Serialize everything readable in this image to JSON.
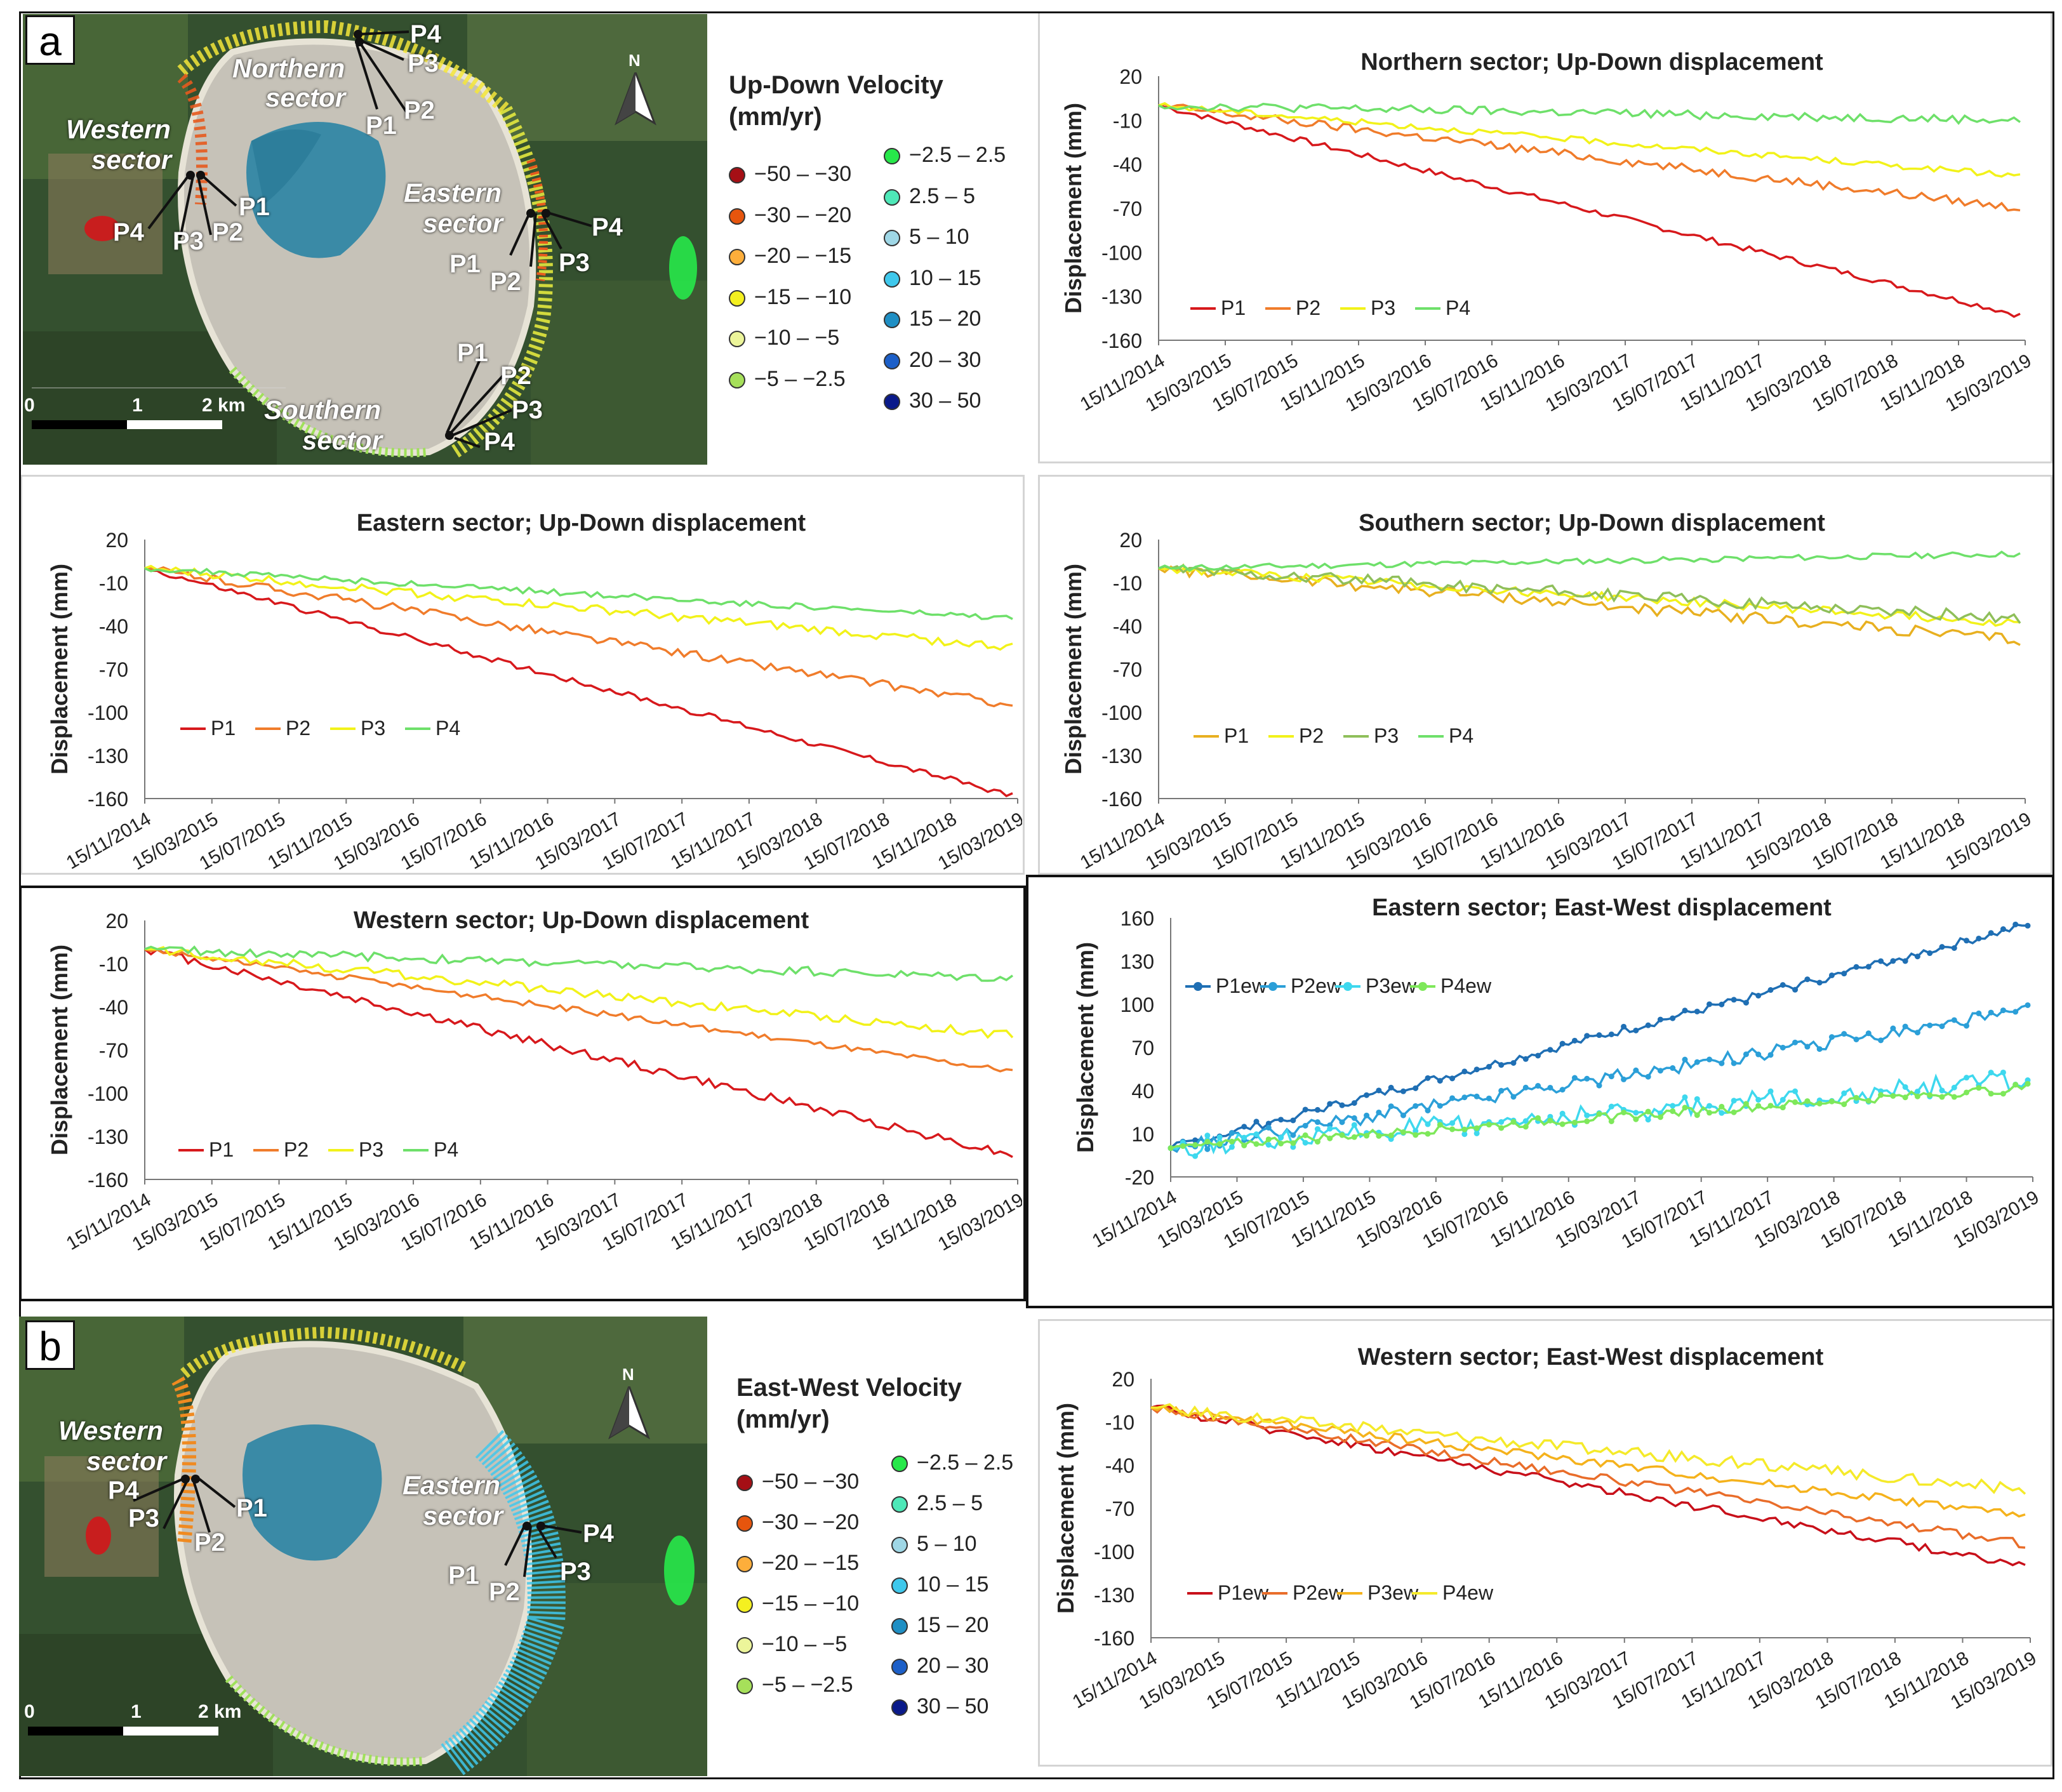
{
  "panel_a_letter": "a",
  "panel_b_letter": "b",
  "map_a": {
    "labels": {
      "northern": [
        "Northern",
        "sector"
      ],
      "western": [
        "Western",
        "sector"
      ],
      "eastern": [
        "Eastern",
        "sector"
      ],
      "southern": [
        "Southern",
        "sector"
      ]
    },
    "north_arrow": "N",
    "scale": {
      "zero": "0",
      "one": "1",
      "two": "2 km"
    },
    "points": {
      "p1": "P1",
      "p2": "P2",
      "p3": "P3",
      "p4": "P4"
    }
  },
  "map_b": {
    "labels": {
      "western": [
        "Western",
        "sector"
      ],
      "eastern": [
        "Eastern",
        "sector"
      ]
    },
    "north_arrow": "N",
    "scale": {
      "zero": "0",
      "one": "1",
      "two": "2 km"
    },
    "points": {
      "p1": "P1",
      "p2": "P2",
      "p3": "P3",
      "p4": "P4"
    }
  },
  "legend_a": {
    "title_line1": "Up-Down Velocity",
    "title_line2": "(mm/yr)",
    "classes": [
      {
        "label": "−50 – −30",
        "color": "#a50f15"
      },
      {
        "label": "−30 – −20",
        "color": "#e6550d"
      },
      {
        "label": "−20 – −15",
        "color": "#fdae3b"
      },
      {
        "label": "−15 – −10",
        "color": "#f4f020"
      },
      {
        "label": "−10 – −5",
        "color": "#ecf59a"
      },
      {
        "label": "−5 – −2.5",
        "color": "#a6e05a"
      },
      {
        "label": "−2.5 – 2.5",
        "color": "#27e84a"
      },
      {
        "label": "2.5 – 5",
        "color": "#4ee8b8"
      },
      {
        "label": "5 – 10",
        "color": "#9fd7e6"
      },
      {
        "label": "10 – 15",
        "color": "#3fc8ec"
      },
      {
        "label": "15 – 20",
        "color": "#1f8fc4"
      },
      {
        "label": "20 – 30",
        "color": "#1c5fc8"
      },
      {
        "label": "30 – 50",
        "color": "#0a1a8a"
      }
    ]
  },
  "legend_b": {
    "title_line1": "East-West Velocity",
    "title_line2": "(mm/yr)",
    "classes": [
      {
        "label": "−50 – −30",
        "color": "#a50f15"
      },
      {
        "label": "−30 – −20",
        "color": "#e6550d"
      },
      {
        "label": "−20 – −15",
        "color": "#fdae3b"
      },
      {
        "label": "−15 – −10",
        "color": "#f4f020"
      },
      {
        "label": "−10 – −5",
        "color": "#ecf59a"
      },
      {
        "label": "−5 – −2.5",
        "color": "#a6e05a"
      },
      {
        "label": "−2.5 – 2.5",
        "color": "#27e84a"
      },
      {
        "label": "2.5 – 5",
        "color": "#4ee8b8"
      },
      {
        "label": "5 – 10",
        "color": "#9fd7e6"
      },
      {
        "label": "10 – 15",
        "color": "#3fc8ec"
      },
      {
        "label": "15 – 20",
        "color": "#1f8fc4"
      },
      {
        "label": "20 – 30",
        "color": "#1c5fc8"
      },
      {
        "label": "30 – 50",
        "color": "#0a1a8a"
      }
    ]
  },
  "chart_data": [
    {
      "id": "north_ud",
      "type": "line",
      "title": "Northern sector; Up-Down displacement",
      "ylabel": "Displacement (mm)",
      "xlabel": "",
      "ylim": [
        -160,
        20
      ],
      "yticks": [
        20,
        -10,
        -40,
        -70,
        -100,
        -130,
        -160
      ],
      "xticks": [
        "15/11/2014",
        "15/03/2015",
        "15/07/2015",
        "15/11/2015",
        "15/03/2016",
        "15/07/2016",
        "15/11/2016",
        "15/03/2017",
        "15/07/2017",
        "15/11/2017",
        "15/03/2018",
        "15/07/2018",
        "15/11/2018",
        "15/03/2019"
      ],
      "legend": "bottom-left",
      "series": [
        {
          "name": "P1",
          "color": "#d7191c",
          "end": -143,
          "noise": 2
        },
        {
          "name": "P2",
          "color": "#f07c2b",
          "end": -70,
          "noise": 3
        },
        {
          "name": "P3",
          "color": "#f2f21a",
          "end": -48,
          "noise": 2
        },
        {
          "name": "P4",
          "color": "#6ee06a",
          "end": -10,
          "noise": 3
        }
      ]
    },
    {
      "id": "east_ud",
      "type": "line",
      "title": "Eastern sector; Up-Down displacement",
      "ylabel": "Displacement (mm)",
      "xlabel": "",
      "ylim": [
        -160,
        20
      ],
      "yticks": [
        20,
        -10,
        -40,
        -70,
        -100,
        -130,
        -160
      ],
      "xticks": [
        "15/11/2014",
        "15/03/2015",
        "15/07/2015",
        "15/11/2015",
        "15/03/2016",
        "15/07/2016",
        "15/11/2016",
        "15/03/2017",
        "15/07/2017",
        "15/11/2017",
        "15/03/2018",
        "15/07/2018",
        "15/11/2018",
        "15/03/2019"
      ],
      "legend": "bottom-left",
      "series": [
        {
          "name": "P1",
          "color": "#d7191c",
          "end": -158,
          "noise": 2
        },
        {
          "name": "P2",
          "color": "#f07c2b",
          "end": -95,
          "noise": 3
        },
        {
          "name": "P3",
          "color": "#f2f21a",
          "end": -55,
          "noise": 3
        },
        {
          "name": "P4",
          "color": "#6ee06a",
          "end": -35,
          "noise": 2
        }
      ]
    },
    {
      "id": "south_ud",
      "type": "line",
      "title": "Southern sector; Up-Down displacement",
      "ylabel": "Displacement (mm)",
      "xlabel": "",
      "ylim": [
        -160,
        20
      ],
      "yticks": [
        20,
        -10,
        -40,
        -70,
        -100,
        -130,
        -160
      ],
      "xticks": [
        "15/11/2014",
        "15/03/2015",
        "15/07/2015",
        "15/11/2015",
        "15/03/2016",
        "15/07/2016",
        "15/11/2016",
        "15/03/2017",
        "15/07/2017",
        "15/11/2017",
        "15/03/2018",
        "15/07/2018",
        "15/11/2018",
        "15/03/2019"
      ],
      "legend": "bottom-left",
      "series": [
        {
          "name": "P1",
          "color": "#e8b020",
          "end": -50,
          "noise": 4
        },
        {
          "name": "P2",
          "color": "#f2f21a",
          "end": -38,
          "noise": 3
        },
        {
          "name": "P3",
          "color": "#8fbf5a",
          "end": -35,
          "noise": 4
        },
        {
          "name": "P4",
          "color": "#6ee06a",
          "end": 10,
          "noise": 2
        }
      ]
    },
    {
      "id": "west_ud",
      "type": "line",
      "title": "Western sector; Up-Down displacement",
      "ylabel": "Displacement (mm)",
      "xlabel": "",
      "ylim": [
        -160,
        20
      ],
      "yticks": [
        20,
        -10,
        -40,
        -70,
        -100,
        -130,
        -160
      ],
      "xticks": [
        "15/11/2014",
        "15/03/2015",
        "15/07/2015",
        "15/11/2015",
        "15/03/2016",
        "15/07/2016",
        "15/11/2016",
        "15/03/2017",
        "15/07/2017",
        "15/11/2017",
        "15/03/2018",
        "15/07/2018",
        "15/11/2018",
        "15/03/2019"
      ],
      "legend": "bottom-left",
      "series": [
        {
          "name": "P1",
          "color": "#d7191c",
          "end": -143,
          "noise": 3
        },
        {
          "name": "P2",
          "color": "#f07c2b",
          "end": -85,
          "noise": 2
        },
        {
          "name": "P3",
          "color": "#f2f21a",
          "end": -60,
          "noise": 3
        },
        {
          "name": "P4",
          "color": "#6ee06a",
          "end": -20,
          "noise": 3
        }
      ]
    },
    {
      "id": "east_ew",
      "type": "line",
      "title": "Eastern sector; East-West displacement",
      "ylabel": "Displacement (mm)",
      "xlabel": "",
      "ylim": [
        -20,
        160
      ],
      "yticks": [
        160,
        130,
        100,
        70,
        40,
        10,
        -20
      ],
      "xticks": [
        "15/11/2014",
        "15/03/2015",
        "15/07/2015",
        "15/11/2015",
        "15/03/2016",
        "15/07/2016",
        "15/11/2016",
        "15/03/2017",
        "15/07/2017",
        "15/11/2017",
        "15/03/2018",
        "15/07/2018",
        "15/11/2018",
        "15/03/2019"
      ],
      "legend": "top-left",
      "markers": true,
      "series": [
        {
          "name": "P1ew",
          "color": "#1f6fb4",
          "end": 155,
          "noise": 3
        },
        {
          "name": "P2ew",
          "color": "#2b9fd8",
          "end": 95,
          "noise": 5
        },
        {
          "name": "P3ew",
          "color": "#3ed8ee",
          "end": 48,
          "noise": 7
        },
        {
          "name": "P4ew",
          "color": "#7ee85a",
          "end": 42,
          "noise": 3
        }
      ]
    },
    {
      "id": "west_ew",
      "type": "line",
      "title": "Western sector; East-West displacement",
      "ylabel": "Displacement (mm)",
      "xlabel": "",
      "ylim": [
        -160,
        20
      ],
      "yticks": [
        20,
        -10,
        -40,
        -70,
        -100,
        -130,
        -160
      ],
      "xticks": [
        "15/11/2014",
        "15/03/2015",
        "15/07/2015",
        "15/11/2015",
        "15/03/2016",
        "15/07/2016",
        "15/11/2016",
        "15/03/2017",
        "15/07/2017",
        "15/11/2017",
        "15/03/2018",
        "15/07/2018",
        "15/11/2018",
        "15/03/2019"
      ],
      "legend": "bottom-left",
      "series": [
        {
          "name": "P1ew",
          "color": "#c8101a",
          "end": -110,
          "noise": 3
        },
        {
          "name": "P2ew",
          "color": "#e96d2a",
          "end": -95,
          "noise": 3
        },
        {
          "name": "P3ew",
          "color": "#f5b21c",
          "end": -75,
          "noise": 3
        },
        {
          "name": "P4ew",
          "color": "#f5ea2a",
          "end": -57,
          "noise": 4
        }
      ]
    }
  ]
}
